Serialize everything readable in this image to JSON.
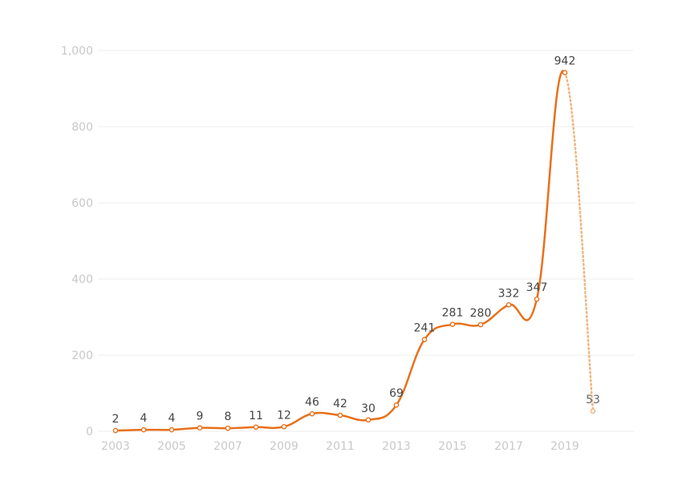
{
  "chart_data": {
    "type": "line",
    "title": "",
    "xlabel": "",
    "ylabel": "",
    "x": [
      2003,
      2004,
      2005,
      2006,
      2007,
      2008,
      2009,
      2010,
      2011,
      2012,
      2013,
      2014,
      2015,
      2016,
      2017,
      2018,
      2019,
      2020
    ],
    "series": [
      {
        "values": [
          2,
          4,
          4,
          9,
          8,
          11,
          12,
          46,
          42,
          30,
          69,
          241,
          281,
          280,
          332,
          347,
          942,
          53
        ],
        "data_labels": [
          "2",
          "4",
          "4",
          "9",
          "8",
          "11",
          "12",
          "46",
          "42",
          "30",
          "69",
          "241",
          "281",
          "280",
          "332",
          "347",
          "942",
          "53"
        ],
        "color": "#e8701a",
        "faded_color": "#f2b27a",
        "last_segment_style": "dotted"
      }
    ],
    "ylim": [
      0,
      1000
    ],
    "y_ticks": [
      0,
      200,
      400,
      600,
      800,
      1000
    ],
    "y_tick_labels": [
      "0",
      "200",
      "400",
      "600",
      "800",
      "1,000"
    ],
    "x_tick_labels": [
      "2003",
      "2005",
      "2007",
      "2009",
      "2011",
      "2013",
      "2015",
      "2017",
      "2019"
    ],
    "grid": true,
    "legend": "none",
    "colors": {
      "line": "#e8701a",
      "line_faded": "#f2b27a",
      "grid": "#ececec",
      "tick_text": "#c8c8c8",
      "label_text": "#444444"
    }
  }
}
